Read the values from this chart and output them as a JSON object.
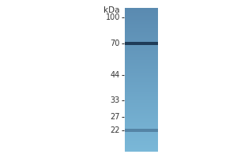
{
  "background_color": "#ffffff",
  "fig_width": 3.0,
  "fig_height": 2.0,
  "dpi": 100,
  "kda_label": "kDa",
  "markers": [
    100,
    70,
    44,
    33,
    27,
    22
  ],
  "band_70_kda": 70,
  "band_22_kda": 22,
  "tick_color": "#333333",
  "text_color": "#333333",
  "band_color_70": "#1a3550",
  "band_color_22": "#3a6080",
  "lane_top_color": "#5a8ab0",
  "lane_mid_color": "#6a9ec0",
  "lane_bottom_color": "#7ab8d8",
  "lane_gradient_steps": 200,
  "font_size_markers": 7.0,
  "font_size_kda": 7.5
}
